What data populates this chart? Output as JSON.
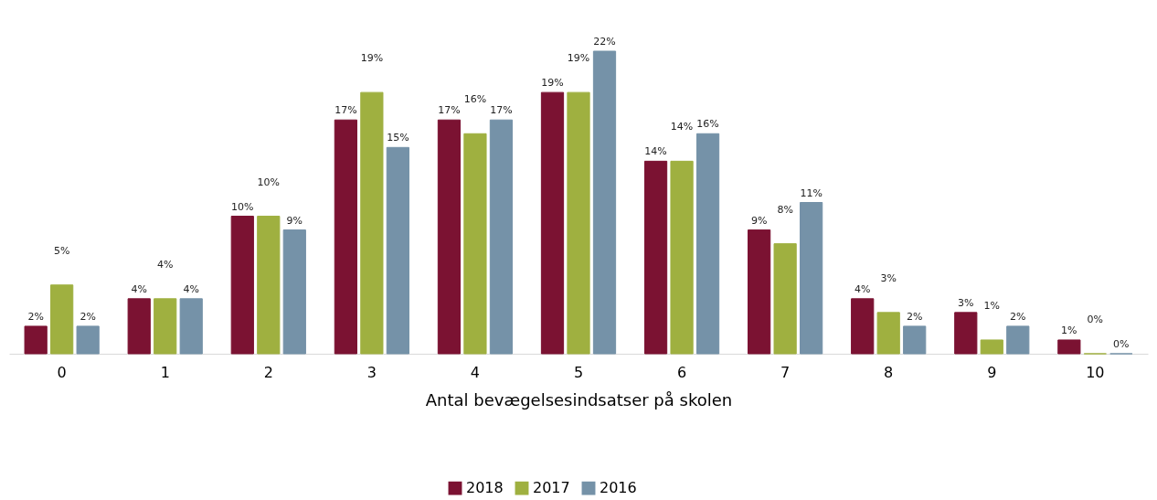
{
  "chart_data": {
    "type": "bar",
    "xlabel": "Antal bevægelsesindsatser på skolen",
    "categories": [
      "0",
      "1",
      "2",
      "3",
      "4",
      "5",
      "6",
      "7",
      "8",
      "9",
      "10"
    ],
    "legend": "bottom",
    "grid": false,
    "tick_labels": "x",
    "series": [
      {
        "name": "2018",
        "color": "#7b1232",
        "values": [
          2,
          4,
          10,
          17,
          17,
          19,
          14,
          9,
          4,
          3,
          1
        ],
        "value_labels": [
          "2%",
          "4%",
          "10%",
          "17%",
          "17%",
          "19%",
          "14%",
          "9%",
          "4%",
          "3%",
          "1%"
        ]
      },
      {
        "name": "2017",
        "color": "#9fb040",
        "values": [
          5,
          4,
          10,
          19,
          16,
          19,
          14,
          8,
          3,
          1,
          0
        ],
        "value_labels": [
          "5%",
          "4%",
          "10%",
          "19%",
          "16%",
          "19%",
          "14%",
          "8%",
          "3%",
          "1%",
          "0%"
        ]
      },
      {
        "name": "2016",
        "color": "#7592a8",
        "values": [
          2,
          4,
          9,
          15,
          17,
          22,
          16,
          11,
          2,
          2,
          0
        ],
        "value_labels": [
          "2%",
          "4%",
          "9%",
          "15%",
          "17%",
          "22%",
          "16%",
          "11%",
          "2%",
          "2%",
          "0%"
        ]
      }
    ]
  }
}
